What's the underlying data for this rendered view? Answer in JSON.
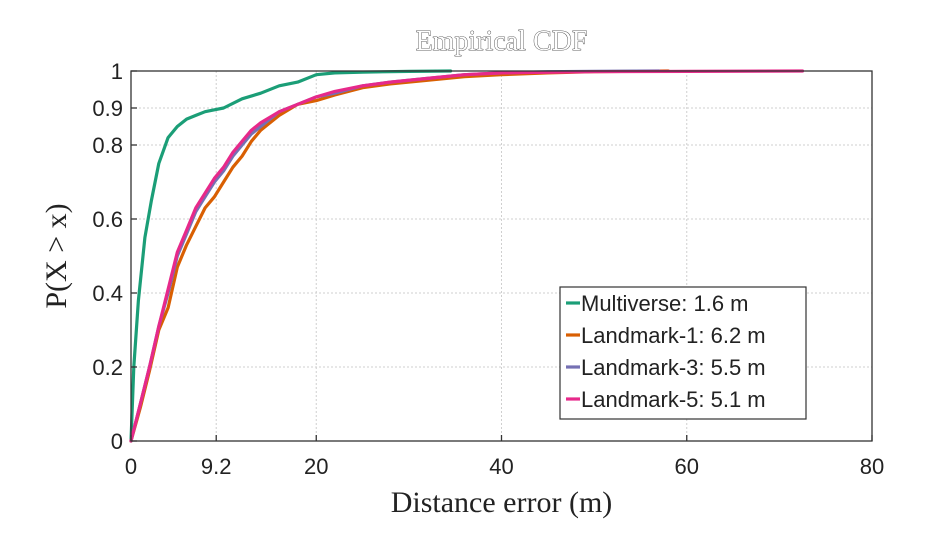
{
  "chart_data": {
    "type": "line",
    "title": "Empirical CDF",
    "xlabel": "Distance error (m)",
    "ylabel": "P(X > x)",
    "xlim": [
      0,
      80
    ],
    "ylim": [
      0,
      1
    ],
    "x_ticks": [
      0,
      9.2,
      20,
      40,
      60,
      80
    ],
    "x_tick_labels": [
      "0",
      "9.2",
      "20",
      "40",
      "60",
      "80"
    ],
    "y_ticks": [
      0,
      0.2,
      0.4,
      0.6,
      0.8,
      0.9,
      1
    ],
    "y_tick_labels": [
      "0",
      "0.2",
      "0.4",
      "0.6",
      "0.8",
      "0.9",
      "1"
    ],
    "grid": true,
    "legend_position": "lower-right",
    "series": [
      {
        "name": "Multiverse: 1.6 m",
        "color": "#1b9e77",
        "x": [
          0,
          0.3,
          0.8,
          1.5,
          2.2,
          3.0,
          4.0,
          5.0,
          6.0,
          7.0,
          8.0,
          9.0,
          10.0,
          12.0,
          14.0,
          16.0,
          18.0,
          20.0,
          22.0,
          25.0,
          30.0,
          34.5
        ],
        "y": [
          0,
          0.2,
          0.38,
          0.55,
          0.65,
          0.75,
          0.82,
          0.85,
          0.87,
          0.88,
          0.89,
          0.895,
          0.9,
          0.925,
          0.94,
          0.96,
          0.97,
          0.99,
          0.995,
          0.997,
          0.999,
          1.0
        ]
      },
      {
        "name": "Landmark-1: 6.2 m",
        "color": "#d95f02",
        "x": [
          0,
          1.0,
          2.0,
          3.0,
          4.0,
          5.0,
          6.0,
          7.0,
          8.0,
          9.0,
          10.0,
          11.0,
          12.0,
          13.0,
          14.0,
          16.0,
          18.0,
          20.0,
          22.0,
          25.0,
          28.0,
          32.0,
          36.0,
          40.0,
          45.0,
          50.0,
          58.0
        ],
        "y": [
          0,
          0.09,
          0.19,
          0.3,
          0.36,
          0.47,
          0.53,
          0.58,
          0.63,
          0.66,
          0.7,
          0.74,
          0.77,
          0.81,
          0.84,
          0.88,
          0.91,
          0.92,
          0.935,
          0.955,
          0.965,
          0.975,
          0.985,
          0.99,
          0.995,
          0.998,
          1.0
        ]
      },
      {
        "name": "Landmark-3: 5.5 m",
        "color": "#7570b3",
        "x": [
          0,
          1.0,
          2.0,
          3.0,
          4.0,
          5.0,
          6.0,
          7.0,
          8.0,
          9.0,
          10.0,
          11.0,
          12.0,
          13.0,
          14.0,
          16.0,
          18.0,
          20.0,
          22.0,
          25.0,
          28.0,
          32.0,
          36.0,
          40.0,
          45.0,
          50.0,
          57.0
        ],
        "y": [
          0,
          0.1,
          0.2,
          0.31,
          0.4,
          0.5,
          0.56,
          0.62,
          0.66,
          0.7,
          0.73,
          0.77,
          0.8,
          0.83,
          0.85,
          0.89,
          0.91,
          0.93,
          0.94,
          0.96,
          0.97,
          0.98,
          0.99,
          0.995,
          0.998,
          0.999,
          1.0
        ]
      },
      {
        "name": "Landmark-5: 5.1 m",
        "color": "#e7298a",
        "x": [
          0,
          1.0,
          2.0,
          3.0,
          4.0,
          5.0,
          6.0,
          7.0,
          8.0,
          9.0,
          10.0,
          11.0,
          12.0,
          13.0,
          14.0,
          16.0,
          18.0,
          20.0,
          22.0,
          25.0,
          28.0,
          32.0,
          36.0,
          40.0,
          50.0,
          60.0,
          72.5
        ],
        "y": [
          0,
          0.1,
          0.2,
          0.31,
          0.41,
          0.51,
          0.57,
          0.63,
          0.67,
          0.71,
          0.74,
          0.78,
          0.81,
          0.84,
          0.86,
          0.89,
          0.91,
          0.93,
          0.945,
          0.96,
          0.97,
          0.98,
          0.99,
          0.995,
          0.998,
          0.999,
          1.0
        ]
      }
    ]
  }
}
